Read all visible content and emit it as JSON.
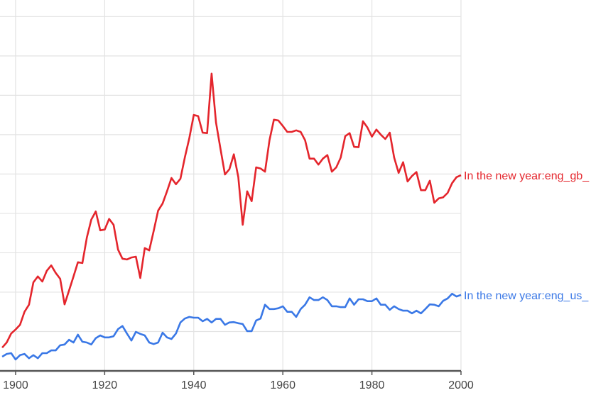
{
  "chart_data": {
    "type": "line",
    "title": "",
    "xlabel": "",
    "ylabel": "",
    "xlim": [
      1896.5,
      2000
    ],
    "ylim": [
      0,
      9.42
    ],
    "grid": true,
    "x_ticks": [
      "1900",
      "1920",
      "1940",
      "1960",
      "1980",
      "2000"
    ],
    "legend": "inline-right-end-of-lines",
    "x": [
      1897,
      1898,
      1899,
      1900,
      1901,
      1902,
      1903,
      1904,
      1905,
      1906,
      1907,
      1908,
      1909,
      1910,
      1911,
      1912,
      1913,
      1914,
      1915,
      1916,
      1917,
      1918,
      1919,
      1920,
      1921,
      1922,
      1923,
      1924,
      1925,
      1926,
      1927,
      1928,
      1929,
      1930,
      1931,
      1932,
      1933,
      1934,
      1935,
      1936,
      1937,
      1938,
      1939,
      1940,
      1941,
      1942,
      1943,
      1944,
      1945,
      1946,
      1947,
      1948,
      1949,
      1950,
      1951,
      1952,
      1953,
      1954,
      1955,
      1956,
      1957,
      1958,
      1959,
      1960,
      1961,
      1962,
      1963,
      1964,
      1965,
      1966,
      1967,
      1968,
      1969,
      1970,
      1971,
      1972,
      1973,
      1974,
      1975,
      1976,
      1977,
      1978,
      1979,
      1980,
      1981,
      1982,
      1983,
      1984,
      1985,
      1986,
      1987,
      1988,
      1989,
      1990,
      1991,
      1992,
      1993,
      1994,
      1995,
      1996,
      1997,
      1998,
      1999,
      2000
    ],
    "series": [
      {
        "name": "In the new year:eng_gb_",
        "color": "#e4252c",
        "values": [
          0.59,
          0.72,
          0.95,
          1.05,
          1.17,
          1.5,
          1.68,
          2.25,
          2.4,
          2.27,
          2.54,
          2.68,
          2.49,
          2.34,
          1.69,
          2.04,
          2.4,
          2.76,
          2.74,
          3.39,
          3.84,
          4.05,
          3.57,
          3.59,
          3.86,
          3.71,
          3.08,
          2.85,
          2.83,
          2.88,
          2.9,
          2.36,
          3.12,
          3.06,
          3.55,
          4.07,
          4.25,
          4.56,
          4.9,
          4.74,
          4.88,
          5.42,
          5.91,
          6.5,
          6.47,
          6.05,
          6.04,
          7.55,
          6.31,
          5.64,
          4.99,
          5.12,
          5.5,
          4.92,
          3.71,
          4.56,
          4.31,
          5.17,
          5.14,
          5.06,
          5.86,
          6.38,
          6.36,
          6.22,
          6.07,
          6.07,
          6.11,
          6.07,
          5.86,
          5.39,
          5.39,
          5.24,
          5.39,
          5.48,
          5.06,
          5.17,
          5.42,
          5.96,
          6.04,
          5.69,
          5.68,
          6.34,
          6.18,
          5.95,
          6.13,
          6.0,
          5.89,
          6.05,
          5.42,
          5.03,
          5.3,
          4.81,
          4.95,
          5.05,
          4.59,
          4.59,
          4.83,
          4.27,
          4.38,
          4.41,
          4.52,
          4.77,
          4.92,
          4.97
        ]
      },
      {
        "name": "In the new year:eng_us_",
        "color": "#3a78e6",
        "values": [
          0.36,
          0.43,
          0.45,
          0.29,
          0.4,
          0.43,
          0.32,
          0.4,
          0.32,
          0.45,
          0.45,
          0.52,
          0.52,
          0.65,
          0.67,
          0.79,
          0.72,
          0.92,
          0.74,
          0.72,
          0.67,
          0.83,
          0.9,
          0.85,
          0.85,
          0.88,
          1.06,
          1.14,
          0.95,
          0.77,
          0.99,
          0.94,
          0.9,
          0.72,
          0.68,
          0.72,
          0.97,
          0.85,
          0.81,
          0.95,
          1.23,
          1.33,
          1.37,
          1.35,
          1.35,
          1.26,
          1.32,
          1.23,
          1.32,
          1.32,
          1.17,
          1.23,
          1.24,
          1.21,
          1.19,
          1.01,
          1.01,
          1.28,
          1.33,
          1.68,
          1.57,
          1.57,
          1.59,
          1.64,
          1.5,
          1.5,
          1.37,
          1.57,
          1.68,
          1.87,
          1.8,
          1.8,
          1.87,
          1.8,
          1.64,
          1.64,
          1.62,
          1.62,
          1.84,
          1.68,
          1.82,
          1.82,
          1.77,
          1.77,
          1.84,
          1.68,
          1.68,
          1.55,
          1.64,
          1.57,
          1.53,
          1.53,
          1.46,
          1.53,
          1.46,
          1.57,
          1.69,
          1.68,
          1.64,
          1.78,
          1.84,
          1.96,
          1.89,
          1.93
        ]
      }
    ]
  }
}
